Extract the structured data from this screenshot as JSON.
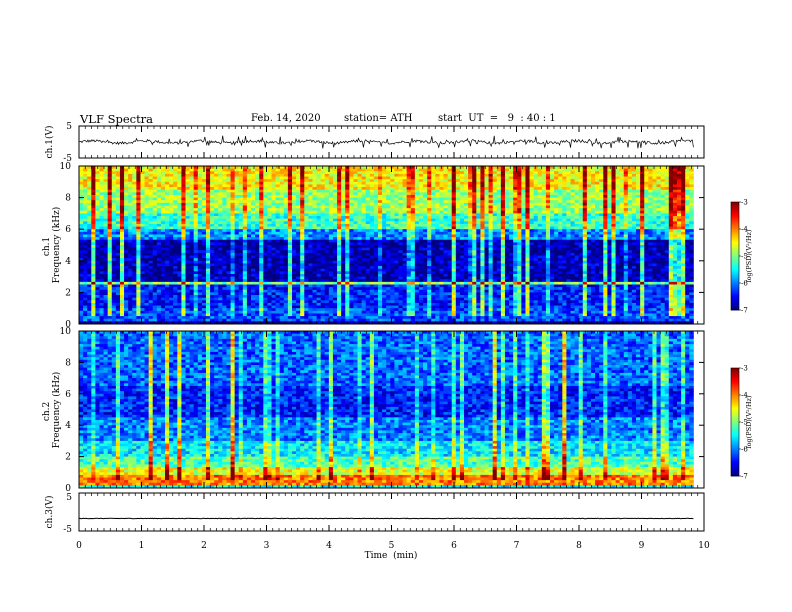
{
  "header": {
    "title": "VLF Spectra",
    "date": "Feb. 14, 2020",
    "station": "station= ATH",
    "start": "start  UT  =   9  : 40 : 1"
  },
  "chart_data": [
    {
      "type": "line",
      "panel": "ch1-waveform",
      "ylabel": "ch.1(V)",
      "ylim": [
        -5,
        5
      ],
      "yticks": [
        "5",
        "-5"
      ],
      "xlim": [
        0,
        10
      ],
      "data_extent_x": [
        0,
        9.83
      ],
      "baseline": 0,
      "amplitude_typical": 0.7,
      "amplitude_spikes": 2
    },
    {
      "type": "heatmap",
      "panel": "ch1-spectrogram",
      "ylabel": "ch.1\nFrequency (kHz)",
      "ylim": [
        0,
        10
      ],
      "yticks": [
        "0",
        "2",
        "4",
        "6",
        "8",
        "10"
      ],
      "xlim": [
        0,
        10
      ],
      "data_extent_x": [
        0,
        9.83
      ],
      "colorbar": {
        "label": "log(PSD)(V²/Hz)",
        "range": [
          -7,
          -3
        ],
        "ticks": [
          "-3",
          "-4",
          "-5",
          "-6",
          "-7"
        ]
      },
      "bands": [
        {
          "f": [
            0,
            0.25
          ],
          "log_psd": -7
        },
        {
          "f": [
            0.25,
            1.0
          ],
          "log_psd": -6.2
        },
        {
          "f": [
            1.0,
            2.5
          ],
          "log_psd": -6.4
        },
        {
          "f": [
            2.5,
            2.7
          ],
          "log_psd": -5.0
        },
        {
          "f": [
            2.7,
            5.3
          ],
          "log_psd": -6.8
        },
        {
          "f": [
            5.3,
            6.0
          ],
          "log_psd": -6.0
        },
        {
          "f": [
            6.0,
            7.0
          ],
          "log_psd": -5.3
        },
        {
          "f": [
            7.0,
            8.5
          ],
          "log_psd": -4.9
        },
        {
          "f": [
            8.5,
            10.0
          ],
          "log_psd": -4.5
        }
      ]
    },
    {
      "type": "heatmap",
      "panel": "ch2-spectrogram",
      "ylabel": "ch.2\nFrequency (kHz)",
      "ylim": [
        0,
        10
      ],
      "yticks": [
        "0",
        "2",
        "4",
        "6",
        "8",
        "10"
      ],
      "xlim": [
        0,
        10
      ],
      "data_extent_x": [
        0,
        9.83
      ],
      "colorbar": {
        "label": "log(PSD)(V²/Hz)",
        "range": [
          -7,
          -3
        ],
        "ticks": [
          "-3",
          "-4",
          "-5",
          "-6",
          "-7"
        ]
      },
      "bands": [
        {
          "f": [
            0,
            0.15
          ],
          "log_psd": -5.5
        },
        {
          "f": [
            0.15,
            0.8
          ],
          "log_psd": -4.0
        },
        {
          "f": [
            0.8,
            1.3
          ],
          "log_psd": -4.6
        },
        {
          "f": [
            1.3,
            2.0
          ],
          "log_psd": -5.2
        },
        {
          "f": [
            2.0,
            3.0
          ],
          "log_psd": -5.6
        },
        {
          "f": [
            3.0,
            4.5
          ],
          "log_psd": -6.0
        },
        {
          "f": [
            4.5,
            6.5
          ],
          "log_psd": -6.4
        },
        {
          "f": [
            6.5,
            10.0
          ],
          "log_psd": -6.1
        }
      ]
    },
    {
      "type": "line",
      "panel": "ch3-waveform",
      "ylabel": "ch.3(V)",
      "ylim": [
        -5,
        5
      ],
      "yticks": [
        "5",
        "-5"
      ],
      "xlim": [
        0,
        10
      ],
      "data_extent_x": [
        0,
        9.83
      ],
      "baseline": -1.7,
      "amplitude_typical": 0.2
    }
  ],
  "xaxis": {
    "label": "Time  (min)",
    "ticks": [
      "0",
      "1",
      "2",
      "3",
      "4",
      "5",
      "6",
      "7",
      "8",
      "9",
      "10"
    ]
  }
}
